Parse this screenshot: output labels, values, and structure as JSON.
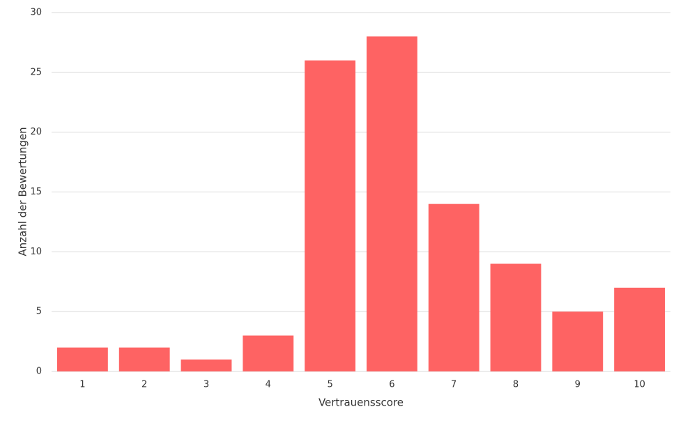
{
  "chart_data": {
    "type": "bar",
    "x_label": "Vertrauensscore",
    "y_label": "Anzahl der Bewertungen",
    "categories": [
      "1",
      "2",
      "3",
      "4",
      "5",
      "6",
      "7",
      "8",
      "9",
      "10"
    ],
    "values": [
      2,
      2,
      1,
      3,
      26,
      28,
      14,
      9,
      5,
      7
    ],
    "color": "#fe6363",
    "ylim": [
      0,
      30
    ],
    "yticks": [
      0,
      5,
      10,
      15,
      20,
      25,
      30
    ],
    "grid": true
  }
}
